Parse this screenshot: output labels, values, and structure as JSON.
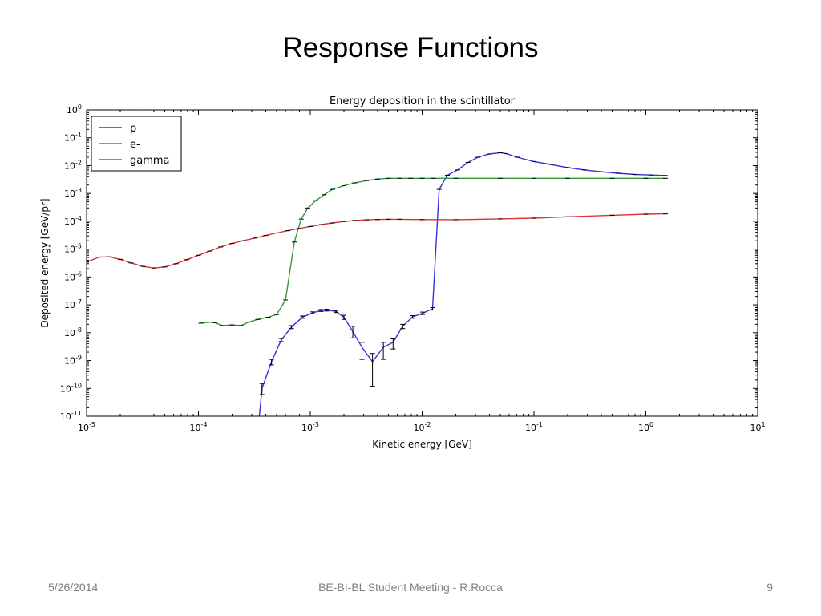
{
  "slide": {
    "title": "Response Functions",
    "footer_date": "5/26/2014",
    "footer_center": "BE-BI-BL Student Meeting - R.Rocca",
    "page_number": "9"
  },
  "chart_data": {
    "type": "line",
    "title": "Energy deposition in the scintillator",
    "xlabel": "Kinetic energy [GeV]",
    "ylabel": "Deposited energy [GeV/pr]",
    "xscale": "log",
    "yscale": "log",
    "xlim": [
      1e-05,
      10
    ],
    "ylim": [
      1e-11,
      1
    ],
    "x_ticks": [
      {
        "base": "10",
        "exp": "-5"
      },
      {
        "base": "10",
        "exp": "-4"
      },
      {
        "base": "10",
        "exp": "-3"
      },
      {
        "base": "10",
        "exp": "-2"
      },
      {
        "base": "10",
        "exp": "-1"
      },
      {
        "base": "10",
        "exp": "0"
      },
      {
        "base": "10",
        "exp": "1"
      }
    ],
    "y_ticks": [
      {
        "base": "10",
        "exp": "-11"
      },
      {
        "base": "10",
        "exp": "-10"
      },
      {
        "base": "10",
        "exp": "-9"
      },
      {
        "base": "10",
        "exp": "-8"
      },
      {
        "base": "10",
        "exp": "-7"
      },
      {
        "base": "10",
        "exp": "-6"
      },
      {
        "base": "10",
        "exp": "-5"
      },
      {
        "base": "10",
        "exp": "-4"
      },
      {
        "base": "10",
        "exp": "-3"
      },
      {
        "base": "10",
        "exp": "-2"
      },
      {
        "base": "10",
        "exp": "-1"
      },
      {
        "base": "10",
        "exp": "0"
      }
    ],
    "grid": false,
    "legend_position": "top-left",
    "series": [
      {
        "name": "p",
        "color": "#3333dd",
        "x": [
          0.00035,
          0.00037,
          0.00045,
          0.00055,
          0.00068,
          0.00085,
          0.00105,
          0.00125,
          0.0014,
          0.0017,
          0.002,
          0.0024,
          0.0029,
          0.0036,
          0.0045,
          0.0055,
          0.0067,
          0.0082,
          0.0101,
          0.0124,
          0.0142,
          0.0168,
          0.0208,
          0.0257,
          0.0316,
          0.0398,
          0.0501,
          0.0562,
          0.0708,
          0.1,
          0.141,
          0.2,
          0.282,
          0.398,
          0.562,
          0.794,
          1.12,
          1.5
        ],
        "y": [
          1e-11,
          1e-10,
          9e-10,
          5.5e-09,
          1.6e-08,
          3.6e-08,
          5.2e-08,
          6.3e-08,
          6.5e-08,
          5.8e-08,
          3.6e-08,
          1.1e-08,
          3e-09,
          9e-10,
          3e-09,
          4.5e-09,
          1.7e-08,
          3.7e-08,
          5e-08,
          7.2e-08,
          0.0014,
          0.0045,
          0.007,
          0.013,
          0.02,
          0.026,
          0.029,
          0.027,
          0.02,
          0.014,
          0.011,
          0.0085,
          0.007,
          0.006,
          0.0053,
          0.0048,
          0.0046,
          0.0044
        ],
        "error_low": [
          null,
          6e-11,
          7e-10,
          4.8e-09,
          1.4e-08,
          3.3e-08,
          4.8e-08,
          5.8e-08,
          6e-08,
          5.3e-08,
          3e-08,
          6.5e-09,
          1.1e-09,
          1.2e-10,
          1.1e-09,
          2.6e-09,
          1.4e-08,
          3.3e-08,
          4.5e-08,
          6.5e-08,
          null,
          null,
          null,
          null,
          null,
          null,
          null,
          null,
          null,
          null,
          null,
          null,
          null,
          null,
          null,
          null,
          null,
          null
        ],
        "error_high": [
          null,
          1.5e-10,
          1.1e-09,
          6.2e-09,
          1.8e-08,
          4e-08,
          5.6e-08,
          6.8e-08,
          7e-08,
          6.3e-08,
          4.2e-08,
          1.7e-08,
          4.5e-09,
          1.8e-09,
          4.5e-09,
          6e-09,
          2e-08,
          4.1e-08,
          5.5e-08,
          8e-08,
          null,
          null,
          null,
          null,
          null,
          null,
          null,
          null,
          null,
          null,
          null,
          null,
          null,
          null,
          null,
          null,
          null,
          null
        ]
      },
      {
        "name": "e-",
        "color": "#339933",
        "x": [
          0.000105,
          0.00013,
          0.00014,
          0.000165,
          0.0002,
          0.00024,
          0.00028,
          0.00034,
          0.00042,
          0.0005,
          0.0006,
          0.00072,
          0.00083,
          0.00095,
          0.00112,
          0.00133,
          0.00158,
          0.002,
          0.0025,
          0.0032,
          0.004,
          0.005,
          0.0063,
          0.0079,
          0.01,
          0.0126,
          0.02,
          0.05,
          0.1,
          0.2,
          0.5,
          1.0,
          1.5
        ],
        "y": [
          2.2e-08,
          2.4e-08,
          2.3e-08,
          1.8e-08,
          1.9e-08,
          1.8e-08,
          2.4e-08,
          3e-08,
          3.6e-08,
          4.5e-08,
          1.5e-07,
          1.8e-05,
          0.00012,
          0.0003,
          0.00055,
          0.0009,
          0.0014,
          0.0019,
          0.0024,
          0.0029,
          0.0033,
          0.0035,
          0.0035,
          0.0035,
          0.0035,
          0.0035,
          0.0035,
          0.0035,
          0.0035,
          0.0035,
          0.0035,
          0.0035,
          0.0035
        ]
      },
      {
        "name": "gamma",
        "color": "#dd3333",
        "x": [
          1e-05,
          1.3e-05,
          1.6e-05,
          2e-05,
          2.5e-05,
          3.2e-05,
          4e-05,
          5e-05,
          6.3e-05,
          7.9e-05,
          0.0001,
          0.000126,
          0.000158,
          0.0002,
          0.00025,
          0.00032,
          0.0004,
          0.0005,
          0.00063,
          0.00079,
          0.001,
          0.00126,
          0.00158,
          0.002,
          0.0025,
          0.0032,
          0.004,
          0.005,
          0.0063,
          0.01,
          0.02,
          0.05,
          0.1,
          0.2,
          0.5,
          1.0,
          1.5
        ],
        "y": [
          3.4e-06,
          5.2e-06,
          5.3e-06,
          4.3e-06,
          3.2e-06,
          2.4e-06,
          2.1e-06,
          2.3e-06,
          3e-06,
          4.2e-06,
          6e-06,
          8.5e-06,
          1.2e-05,
          1.6e-05,
          2e-05,
          2.5e-05,
          3.1e-05,
          3.8e-05,
          4.6e-05,
          5.5e-05,
          6.5e-05,
          7.6e-05,
          8.7e-05,
          9.8e-05,
          0.000107,
          0.000113,
          0.000116,
          0.000118,
          0.000118,
          0.000115,
          0.000114,
          0.000122,
          0.00013,
          0.000145,
          0.000165,
          0.00018,
          0.000185
        ]
      }
    ]
  }
}
